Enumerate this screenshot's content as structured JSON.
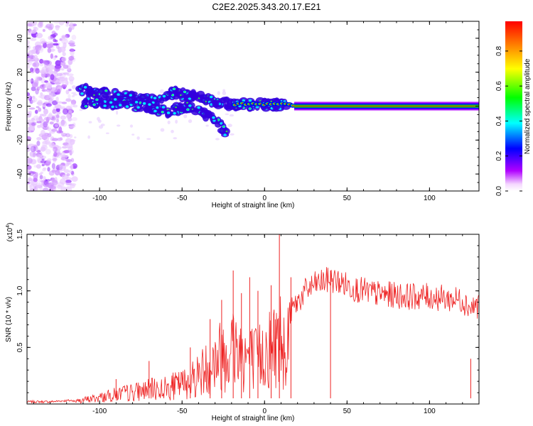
{
  "title": "C2E2.2025.343.20.17.E21",
  "chart_data": [
    {
      "type": "heatmap",
      "title": "C2E2.2025.343.20.17.E21",
      "xlabel": "Height of straight line (km)",
      "ylabel": "Frequency (Hz)",
      "xlim": [
        -144,
        130
      ],
      "ylim": [
        -50,
        50
      ],
      "xticks": [
        -100,
        -50,
        0,
        50,
        100
      ],
      "yticks": [
        -40,
        -20,
        0,
        20,
        40
      ],
      "colorbar": {
        "label": "Normalized spectral amplitude",
        "range": [
          0,
          0.97
        ],
        "ticks": [
          0.0,
          0.2,
          0.4,
          0.6,
          0.8
        ],
        "colormap": [
          "#ffffff",
          "#b000ff",
          "#0000ff",
          "#00ffff",
          "#00ff00",
          "#ffff00",
          "#ff8000",
          "#ff0000"
        ]
      },
      "features": [
        {
          "name": "noise-region",
          "x_range": [
            -144,
            -115
          ],
          "freq_range": [
            -50,
            50
          ],
          "amplitude": 0.15
        },
        {
          "name": "upper-branch",
          "points": [
            [
              -112,
              10
            ],
            [
              -95,
              7
            ],
            [
              -80,
              5
            ],
            [
              -65,
              3
            ],
            [
              -55,
              8
            ],
            [
              -45,
              6
            ],
            [
              -35,
              4
            ],
            [
              -25,
              2
            ],
            [
              -15,
              1
            ],
            [
              0,
              1
            ],
            [
              15,
              0.5
            ]
          ]
        },
        {
          "name": "lower-branch",
          "points": [
            [
              -110,
              2
            ],
            [
              -90,
              2
            ],
            [
              -75,
              0
            ],
            [
              -60,
              -3
            ],
            [
              -45,
              0
            ],
            [
              -35,
              -5
            ],
            [
              -28,
              -10
            ],
            [
              -22,
              -17
            ]
          ]
        },
        {
          "name": "carrier-line",
          "x_range": [
            18,
            130
          ],
          "frequency": 0,
          "amplitude": 0.95
        }
      ]
    },
    {
      "type": "line",
      "xlabel": "Height of straight line (km)",
      "ylabel": "SNR (10 * v/v)",
      "multiplier": "(x10",
      "exponent": "4",
      "multiplier_close": ")",
      "xlim": [
        -144,
        130
      ],
      "ylim": [
        0,
        1.5
      ],
      "xticks": [
        -100,
        -50,
        0,
        50,
        100
      ],
      "yticks": [
        0.5,
        1.0,
        1.5
      ],
      "series": [
        {
          "name": "SNR",
          "color": "#ee2222",
          "x": [
            -144,
            -130,
            -120,
            -115,
            -110,
            -100,
            -90,
            -80,
            -70,
            -60,
            -50,
            -45,
            -40,
            -35,
            -30,
            -25,
            -20,
            -15,
            -10,
            -5,
            0,
            5,
            10,
            15,
            20,
            25,
            30,
            35,
            40,
            45,
            50,
            55,
            60,
            65,
            70,
            80,
            90,
            100,
            110,
            120,
            125,
            130
          ],
          "y": [
            0.02,
            0.02,
            0.03,
            0.03,
            0.05,
            0.08,
            0.12,
            0.15,
            0.18,
            0.2,
            0.25,
            0.3,
            0.38,
            0.45,
            0.55,
            0.65,
            0.75,
            0.68,
            0.6,
            0.55,
            0.65,
            0.75,
            0.85,
            0.8,
            0.9,
            1.0,
            1.05,
            1.08,
            1.1,
            1.08,
            1.05,
            1.02,
            1.0,
            0.98,
            0.97,
            0.96,
            0.95,
            0.95,
            0.93,
            0.92,
            0.85,
            0.88
          ]
        }
      ],
      "spikes": [
        [
          -90,
          0.22
        ],
        [
          -70,
          0.38
        ],
        [
          -45,
          0.5
        ],
        [
          -33,
          0.75
        ],
        [
          -26,
          0.92
        ],
        [
          -19,
          1.18
        ],
        [
          -14,
          0.98
        ],
        [
          -9,
          1.12
        ],
        [
          -4,
          1.0
        ],
        [
          4,
          1.05
        ],
        [
          9,
          1.5
        ],
        [
          16,
          1.12
        ],
        [
          40,
          1.18
        ],
        [
          125,
          0.4
        ]
      ]
    }
  ]
}
